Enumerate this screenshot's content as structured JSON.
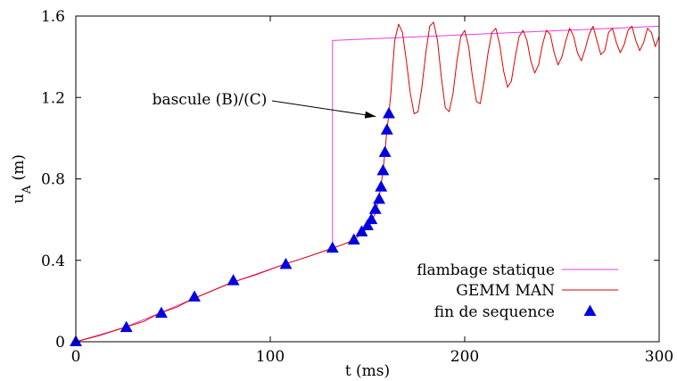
{
  "chart_data": {
    "type": "line",
    "xlabel": "t (ms)",
    "ylabel_main": "u",
    "ylabel_sub": "A",
    "ylabel_unit": " (m)",
    "xlim": [
      0,
      300
    ],
    "ylim": [
      0,
      1.6
    ],
    "xticks": [
      0,
      100,
      200,
      300
    ],
    "xtick_labels": [
      "0",
      "100",
      "200",
      "300"
    ],
    "yticks": [
      0,
      0.4,
      0.8,
      1.2,
      1.6
    ],
    "ytick_labels": [
      "0",
      "0.4",
      "0.8",
      "1.2",
      "1.6"
    ],
    "grid": false,
    "legend_position": "bottom-right",
    "series": [
      {
        "name": "flambage statique",
        "style": "line",
        "color": "#e040e0",
        "x": [
          0,
          25,
          43,
          60,
          80,
          107,
          120,
          132,
          132,
          300
        ],
        "y": [
          0,
          0.07,
          0.14,
          0.21,
          0.29,
          0.38,
          0.42,
          0.46,
          1.48,
          1.55
        ]
      },
      {
        "name": "GEMM MAN",
        "style": "line",
        "color": "#e00000",
        "x": [
          0,
          12,
          25,
          35,
          43,
          52,
          60,
          70,
          80,
          93,
          107,
          120,
          132,
          138,
          143,
          147,
          150,
          152,
          154,
          155,
          156,
          157,
          158,
          159,
          160,
          161,
          162,
          163,
          164,
          166,
          168,
          170,
          172,
          174,
          176,
          178,
          180,
          182,
          184,
          186,
          188,
          190,
          192,
          194,
          196,
          198,
          200,
          202,
          204,
          206,
          208,
          210,
          212,
          214,
          216,
          218,
          220,
          222,
          224,
          226,
          228,
          230,
          232,
          234,
          236,
          238,
          240,
          242,
          244,
          246,
          248,
          250,
          252,
          254,
          256,
          258,
          260,
          262,
          264,
          266,
          268,
          270,
          272,
          274,
          276,
          278,
          280,
          282,
          284,
          286,
          288,
          290,
          292,
          294,
          296,
          298,
          300
        ],
        "y": [
          0,
          0.03,
          0.07,
          0.1,
          0.14,
          0.17,
          0.21,
          0.25,
          0.29,
          0.33,
          0.38,
          0.42,
          0.46,
          0.48,
          0.5,
          0.53,
          0.56,
          0.59,
          0.63,
          0.67,
          0.71,
          0.77,
          0.84,
          0.93,
          1.04,
          1.12,
          1.22,
          1.35,
          1.48,
          1.56,
          1.52,
          1.38,
          1.22,
          1.12,
          1.13,
          1.25,
          1.42,
          1.55,
          1.57,
          1.48,
          1.3,
          1.15,
          1.13,
          1.22,
          1.38,
          1.5,
          1.53,
          1.45,
          1.3,
          1.18,
          1.17,
          1.28,
          1.42,
          1.52,
          1.54,
          1.46,
          1.33,
          1.25,
          1.28,
          1.4,
          1.5,
          1.53,
          1.48,
          1.38,
          1.32,
          1.36,
          1.46,
          1.53,
          1.51,
          1.42,
          1.36,
          1.4,
          1.48,
          1.54,
          1.5,
          1.42,
          1.38,
          1.44,
          1.51,
          1.55,
          1.48,
          1.41,
          1.43,
          1.52,
          1.54,
          1.47,
          1.42,
          1.46,
          1.53,
          1.55,
          1.48,
          1.43,
          1.47,
          1.54,
          1.52,
          1.45,
          1.5
        ]
      },
      {
        "name": "fin de sequence",
        "style": "markers",
        "marker": "triangle",
        "color": "#0000e0",
        "x": [
          0,
          26,
          44,
          61,
          81,
          108,
          132,
          143,
          147,
          150,
          152,
          154,
          156,
          157,
          158,
          159,
          160,
          161
        ],
        "y": [
          0,
          0.07,
          0.14,
          0.22,
          0.3,
          0.38,
          0.46,
          0.5,
          0.54,
          0.57,
          0.6,
          0.65,
          0.7,
          0.76,
          0.84,
          0.93,
          1.04,
          1.12
        ]
      }
    ],
    "annotations": [
      {
        "text": "bascule (B)/(C)",
        "target_x": 157,
        "target_y": 1.12
      }
    ]
  }
}
